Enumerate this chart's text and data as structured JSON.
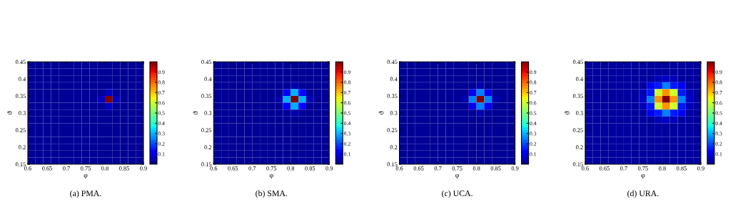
{
  "chart_data": [
    {
      "type": "heatmap",
      "title": "(a) PMA.",
      "xlabel": "φ",
      "ylabel": "ϑ",
      "xlim": [
        0.6,
        0.9
      ],
      "ylim": [
        0.15,
        0.45
      ],
      "xticks": [
        0.6,
        0.65,
        0.7,
        0.75,
        0.8,
        0.85,
        0.9
      ],
      "yticks": [
        0.15,
        0.2,
        0.25,
        0.3,
        0.35,
        0.4,
        0.45
      ],
      "clim": [
        0,
        1
      ],
      "cticks": [
        0.1,
        0.2,
        0.3,
        0.4,
        0.5,
        0.6,
        0.7,
        0.8,
        0.9
      ],
      "cells": [
        [
          0.02,
          0.02,
          0.02,
          0.02,
          0.02,
          0.02,
          0.02,
          0.02,
          0.02,
          0.02,
          0.02,
          0.02,
          0.02,
          0.02,
          0.02
        ],
        [
          0.02,
          0.02,
          0.02,
          0.02,
          0.02,
          0.02,
          0.02,
          0.02,
          0.02,
          0.02,
          0.02,
          0.02,
          0.02,
          0.02,
          0.02
        ],
        [
          0.02,
          0.02,
          0.02,
          0.02,
          0.02,
          0.02,
          0.02,
          0.02,
          0.02,
          0.02,
          0.02,
          0.02,
          0.02,
          0.02,
          0.02
        ],
        [
          0.02,
          0.02,
          0.02,
          0.02,
          0.02,
          0.02,
          0.02,
          0.02,
          0.02,
          0.02,
          0.02,
          0.02,
          0.02,
          0.02,
          0.02
        ],
        [
          0.02,
          0.02,
          0.02,
          0.02,
          0.02,
          0.02,
          0.02,
          0.02,
          0.02,
          0.02,
          0.06,
          0.02,
          0.02,
          0.02,
          0.02
        ],
        [
          0.02,
          0.02,
          0.02,
          0.02,
          0.02,
          0.02,
          0.02,
          0.02,
          0.02,
          0.06,
          1,
          0.06,
          0.02,
          0.02,
          0.02
        ],
        [
          0.02,
          0.02,
          0.02,
          0.02,
          0.02,
          0.02,
          0.02,
          0.02,
          0.02,
          0.02,
          0.06,
          0.02,
          0.02,
          0.02,
          0.02
        ],
        [
          0.02,
          0.02,
          0.02,
          0.02,
          0.02,
          0.02,
          0.02,
          0.02,
          0.02,
          0.02,
          0.02,
          0.02,
          0.02,
          0.02,
          0.02
        ],
        [
          0.02,
          0.02,
          0.02,
          0.02,
          0.02,
          0.02,
          0.02,
          0.02,
          0.02,
          0.02,
          0.02,
          0.02,
          0.02,
          0.02,
          0.02
        ],
        [
          0.02,
          0.02,
          0.02,
          0.02,
          0.02,
          0.02,
          0.02,
          0.02,
          0.02,
          0.02,
          0.02,
          0.02,
          0.02,
          0.02,
          0.02
        ],
        [
          0.02,
          0.02,
          0.02,
          0.02,
          0.02,
          0.02,
          0.02,
          0.02,
          0.02,
          0.02,
          0.02,
          0.02,
          0.02,
          0.02,
          0.02
        ],
        [
          0.02,
          0.02,
          0.02,
          0.02,
          0.02,
          0.02,
          0.02,
          0.02,
          0.02,
          0.02,
          0.02,
          0.02,
          0.02,
          0.02,
          0.02
        ],
        [
          0.02,
          0.02,
          0.02,
          0.02,
          0.02,
          0.02,
          0.02,
          0.02,
          0.02,
          0.02,
          0.02,
          0.02,
          0.02,
          0.02,
          0.02
        ],
        [
          0.02,
          0.02,
          0.02,
          0.02,
          0.02,
          0.02,
          0.02,
          0.02,
          0.02,
          0.02,
          0.02,
          0.02,
          0.02,
          0.02,
          0.02
        ],
        [
          0.02,
          0.02,
          0.02,
          0.02,
          0.02,
          0.02,
          0.02,
          0.02,
          0.02,
          0.02,
          0.02,
          0.02,
          0.02,
          0.02,
          0.02
        ]
      ]
    },
    {
      "type": "heatmap",
      "title": "(b) SMA.",
      "xlabel": "φ",
      "ylabel": "ϑ",
      "xlim": [
        0.6,
        0.9
      ],
      "ylim": [
        0.15,
        0.45
      ],
      "xticks": [
        0.6,
        0.65,
        0.7,
        0.75,
        0.8,
        0.85,
        0.9
      ],
      "yticks": [
        0.15,
        0.2,
        0.25,
        0.3,
        0.35,
        0.4,
        0.45
      ],
      "clim": [
        0,
        1
      ],
      "cticks": [
        0.1,
        0.2,
        0.3,
        0.4,
        0.5,
        0.6,
        0.7,
        0.8,
        0.9
      ],
      "cells": [
        [
          0.02,
          0.02,
          0.02,
          0.02,
          0.02,
          0.02,
          0.02,
          0.02,
          0.02,
          0.02,
          0.02,
          0.02,
          0.02,
          0.02,
          0.02
        ],
        [
          0.02,
          0.02,
          0.02,
          0.02,
          0.02,
          0.02,
          0.02,
          0.02,
          0.02,
          0.02,
          0.02,
          0.02,
          0.02,
          0.02,
          0.02
        ],
        [
          0.02,
          0.02,
          0.02,
          0.02,
          0.02,
          0.02,
          0.02,
          0.02,
          0.02,
          0.02,
          0.02,
          0.02,
          0.02,
          0.02,
          0.02
        ],
        [
          0.02,
          0.02,
          0.02,
          0.02,
          0.02,
          0.02,
          0.02,
          0.02,
          0.02,
          0.02,
          0.04,
          0.02,
          0.02,
          0.02,
          0.02
        ],
        [
          0.02,
          0.02,
          0.02,
          0.02,
          0.02,
          0.02,
          0.02,
          0.02,
          0.02,
          0.12,
          0.3,
          0.12,
          0.02,
          0.02,
          0.02
        ],
        [
          0.02,
          0.02,
          0.02,
          0.02,
          0.02,
          0.02,
          0.02,
          0.02,
          0.04,
          0.3,
          1,
          0.3,
          0.04,
          0.02,
          0.02
        ],
        [
          0.02,
          0.02,
          0.02,
          0.02,
          0.02,
          0.02,
          0.02,
          0.02,
          0.02,
          0.12,
          0.3,
          0.12,
          0.02,
          0.02,
          0.02
        ],
        [
          0.02,
          0.02,
          0.02,
          0.02,
          0.02,
          0.02,
          0.02,
          0.02,
          0.02,
          0.02,
          0.04,
          0.02,
          0.02,
          0.02,
          0.02
        ],
        [
          0.02,
          0.02,
          0.02,
          0.02,
          0.02,
          0.02,
          0.02,
          0.02,
          0.02,
          0.02,
          0.02,
          0.02,
          0.02,
          0.02,
          0.02
        ],
        [
          0.02,
          0.02,
          0.02,
          0.02,
          0.02,
          0.02,
          0.02,
          0.02,
          0.02,
          0.02,
          0.02,
          0.02,
          0.02,
          0.02,
          0.02
        ],
        [
          0.02,
          0.02,
          0.02,
          0.02,
          0.02,
          0.02,
          0.02,
          0.02,
          0.02,
          0.02,
          0.02,
          0.02,
          0.02,
          0.02,
          0.02
        ],
        [
          0.02,
          0.02,
          0.02,
          0.02,
          0.02,
          0.02,
          0.02,
          0.02,
          0.02,
          0.02,
          0.02,
          0.02,
          0.02,
          0.02,
          0.02
        ],
        [
          0.02,
          0.02,
          0.02,
          0.02,
          0.02,
          0.02,
          0.02,
          0.02,
          0.02,
          0.02,
          0.02,
          0.02,
          0.02,
          0.02,
          0.02
        ],
        [
          0.02,
          0.02,
          0.02,
          0.02,
          0.02,
          0.02,
          0.02,
          0.02,
          0.02,
          0.02,
          0.02,
          0.02,
          0.02,
          0.02,
          0.02
        ],
        [
          0.02,
          0.02,
          0.02,
          0.02,
          0.02,
          0.02,
          0.02,
          0.02,
          0.02,
          0.02,
          0.02,
          0.02,
          0.02,
          0.02,
          0.02
        ]
      ]
    },
    {
      "type": "heatmap",
      "title": "(c) UCA.",
      "xlabel": "φ",
      "ylabel": "ϑ",
      "xlim": [
        0.6,
        0.9
      ],
      "ylim": [
        0.15,
        0.45
      ],
      "xticks": [
        0.6,
        0.65,
        0.7,
        0.75,
        0.8,
        0.85,
        0.9
      ],
      "yticks": [
        0.15,
        0.2,
        0.25,
        0.3,
        0.35,
        0.4,
        0.45
      ],
      "clim": [
        0,
        1
      ],
      "cticks": [
        0.1,
        0.2,
        0.3,
        0.4,
        0.5,
        0.6,
        0.7,
        0.8,
        0.9
      ],
      "cells": [
        [
          0.02,
          0.02,
          0.02,
          0.02,
          0.02,
          0.02,
          0.02,
          0.02,
          0.02,
          0.02,
          0.02,
          0.02,
          0.02,
          0.02,
          0.02
        ],
        [
          0.02,
          0.02,
          0.02,
          0.02,
          0.02,
          0.02,
          0.02,
          0.02,
          0.02,
          0.02,
          0.02,
          0.02,
          0.02,
          0.02,
          0.02
        ],
        [
          0.02,
          0.02,
          0.02,
          0.02,
          0.02,
          0.02,
          0.02,
          0.02,
          0.02,
          0.02,
          0.02,
          0.02,
          0.02,
          0.02,
          0.02
        ],
        [
          0.02,
          0.02,
          0.02,
          0.02,
          0.02,
          0.02,
          0.02,
          0.02,
          0.02,
          0.02,
          0.04,
          0.02,
          0.02,
          0.02,
          0.02
        ],
        [
          0.02,
          0.02,
          0.02,
          0.02,
          0.02,
          0.02,
          0.02,
          0.02,
          0.02,
          0.1,
          0.25,
          0.1,
          0.02,
          0.02,
          0.02
        ],
        [
          0.02,
          0.02,
          0.02,
          0.02,
          0.02,
          0.02,
          0.02,
          0.02,
          0.04,
          0.25,
          1,
          0.25,
          0.04,
          0.02,
          0.02
        ],
        [
          0.02,
          0.02,
          0.02,
          0.02,
          0.02,
          0.02,
          0.02,
          0.02,
          0.02,
          0.1,
          0.25,
          0.1,
          0.02,
          0.02,
          0.02
        ],
        [
          0.02,
          0.02,
          0.02,
          0.02,
          0.02,
          0.02,
          0.02,
          0.02,
          0.02,
          0.02,
          0.04,
          0.02,
          0.02,
          0.02,
          0.02
        ],
        [
          0.02,
          0.02,
          0.02,
          0.02,
          0.02,
          0.02,
          0.02,
          0.02,
          0.02,
          0.02,
          0.02,
          0.02,
          0.02,
          0.02,
          0.02
        ],
        [
          0.02,
          0.02,
          0.02,
          0.02,
          0.02,
          0.02,
          0.02,
          0.02,
          0.02,
          0.02,
          0.02,
          0.02,
          0.02,
          0.02,
          0.02
        ],
        [
          0.02,
          0.02,
          0.02,
          0.02,
          0.02,
          0.02,
          0.02,
          0.02,
          0.02,
          0.02,
          0.02,
          0.02,
          0.02,
          0.02,
          0.02
        ],
        [
          0.02,
          0.02,
          0.02,
          0.02,
          0.02,
          0.02,
          0.02,
          0.02,
          0.02,
          0.02,
          0.02,
          0.02,
          0.02,
          0.02,
          0.02
        ],
        [
          0.02,
          0.02,
          0.02,
          0.02,
          0.02,
          0.02,
          0.02,
          0.02,
          0.02,
          0.02,
          0.02,
          0.02,
          0.02,
          0.02,
          0.02
        ],
        [
          0.02,
          0.02,
          0.02,
          0.02,
          0.02,
          0.02,
          0.02,
          0.02,
          0.02,
          0.02,
          0.02,
          0.02,
          0.02,
          0.02,
          0.02
        ],
        [
          0.02,
          0.02,
          0.02,
          0.02,
          0.02,
          0.02,
          0.02,
          0.02,
          0.02,
          0.02,
          0.02,
          0.02,
          0.02,
          0.02,
          0.02
        ]
      ]
    },
    {
      "type": "heatmap",
      "title": "(d) URA.",
      "xlabel": "φ",
      "ylabel": "ϑ",
      "xlim": [
        0.6,
        0.9
      ],
      "ylim": [
        0.15,
        0.45
      ],
      "xticks": [
        0.6,
        0.65,
        0.7,
        0.75,
        0.8,
        0.85,
        0.9
      ],
      "yticks": [
        0.15,
        0.2,
        0.25,
        0.3,
        0.35,
        0.4,
        0.45
      ],
      "clim": [
        0,
        1
      ],
      "cticks": [
        0.1,
        0.2,
        0.3,
        0.4,
        0.5,
        0.6,
        0.7,
        0.8,
        0.9
      ],
      "cells": [
        [
          0.03,
          0.03,
          0.03,
          0.03,
          0.03,
          0.03,
          0.03,
          0.03,
          0.03,
          0.03,
          0.03,
          0.03,
          0.03,
          0.03,
          0.03
        ],
        [
          0.03,
          0.03,
          0.03,
          0.03,
          0.03,
          0.03,
          0.03,
          0.03,
          0.03,
          0.03,
          0.03,
          0.03,
          0.03,
          0.03,
          0.03
        ],
        [
          0.03,
          0.03,
          0.03,
          0.03,
          0.03,
          0.03,
          0.03,
          0.03,
          0.03,
          0.05,
          0.06,
          0.05,
          0.03,
          0.03,
          0.03
        ],
        [
          0.03,
          0.03,
          0.03,
          0.03,
          0.03,
          0.03,
          0.03,
          0.03,
          0.1,
          0.15,
          0.25,
          0.15,
          0.1,
          0.03,
          0.03
        ],
        [
          0.03,
          0.03,
          0.03,
          0.03,
          0.03,
          0.03,
          0.03,
          0.05,
          0.15,
          0.6,
          0.75,
          0.6,
          0.15,
          0.05,
          0.03
        ],
        [
          0.03,
          0.03,
          0.03,
          0.03,
          0.03,
          0.03,
          0.03,
          0.06,
          0.25,
          0.75,
          1,
          0.75,
          0.25,
          0.06,
          0.03
        ],
        [
          0.03,
          0.03,
          0.03,
          0.03,
          0.03,
          0.03,
          0.03,
          0.05,
          0.15,
          0.6,
          0.75,
          0.6,
          0.15,
          0.05,
          0.03
        ],
        [
          0.03,
          0.03,
          0.03,
          0.03,
          0.03,
          0.03,
          0.03,
          0.03,
          0.1,
          0.15,
          0.25,
          0.15,
          0.1,
          0.03,
          0.03
        ],
        [
          0.03,
          0.03,
          0.03,
          0.03,
          0.03,
          0.03,
          0.03,
          0.03,
          0.03,
          0.05,
          0.06,
          0.05,
          0.03,
          0.03,
          0.03
        ],
        [
          0.03,
          0.03,
          0.03,
          0.03,
          0.03,
          0.03,
          0.03,
          0.03,
          0.03,
          0.03,
          0.03,
          0.03,
          0.03,
          0.03,
          0.03
        ],
        [
          0.03,
          0.03,
          0.03,
          0.03,
          0.03,
          0.03,
          0.03,
          0.03,
          0.03,
          0.03,
          0.03,
          0.03,
          0.03,
          0.03,
          0.03
        ],
        [
          0.03,
          0.03,
          0.03,
          0.03,
          0.03,
          0.03,
          0.03,
          0.03,
          0.03,
          0.03,
          0.03,
          0.03,
          0.03,
          0.03,
          0.03
        ],
        [
          0.03,
          0.03,
          0.03,
          0.03,
          0.03,
          0.03,
          0.03,
          0.03,
          0.03,
          0.03,
          0.03,
          0.03,
          0.03,
          0.03,
          0.03
        ],
        [
          0.03,
          0.03,
          0.03,
          0.03,
          0.03,
          0.03,
          0.03,
          0.03,
          0.03,
          0.03,
          0.03,
          0.03,
          0.03,
          0.03,
          0.03
        ],
        [
          0.03,
          0.03,
          0.03,
          0.03,
          0.03,
          0.03,
          0.03,
          0.03,
          0.03,
          0.03,
          0.03,
          0.03,
          0.03,
          0.03,
          0.03
        ]
      ]
    }
  ]
}
